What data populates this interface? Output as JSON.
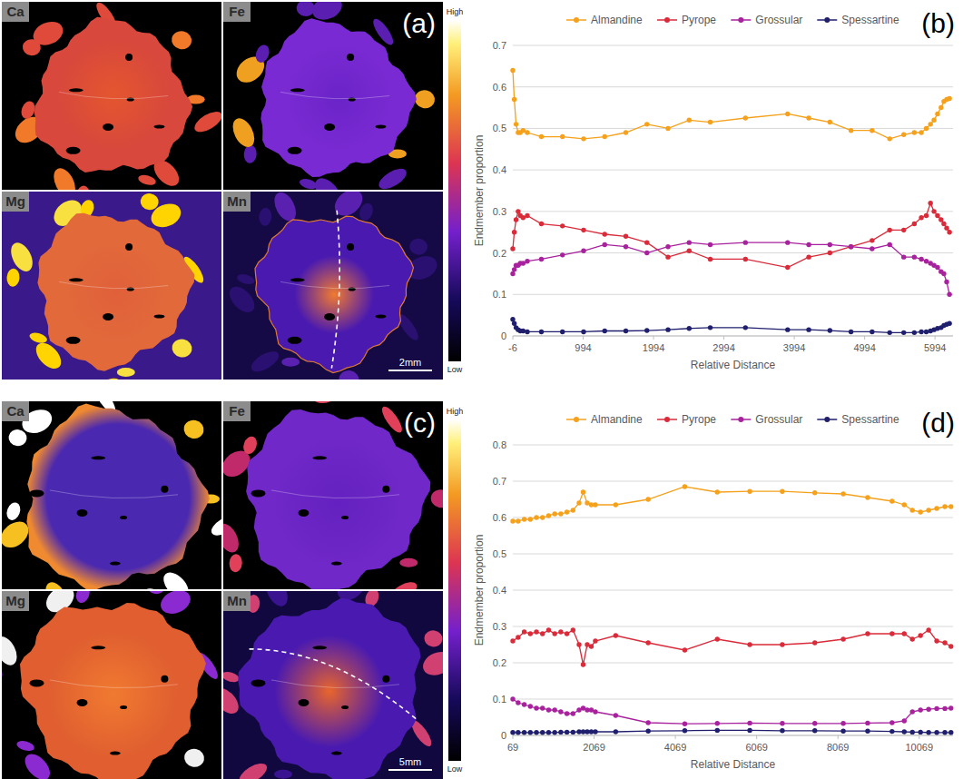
{
  "chart_data": [
    {
      "type": "line",
      "panel_label": "(b)",
      "x_label": "Relative Distance",
      "y_label": "Endmember proportion",
      "x": [
        -6,
        15,
        40,
        70,
        100,
        140,
        200,
        400,
        700,
        1000,
        1300,
        1600,
        1900,
        2200,
        2500,
        2800,
        3300,
        3900,
        4200,
        4500,
        4800,
        5100,
        5350,
        5550,
        5700,
        5800,
        5870,
        5930,
        5980,
        6030,
        6080,
        6120,
        6160,
        6200
      ],
      "xlim": [
        -6,
        6250
      ],
      "xticks": [
        -6,
        994,
        1994,
        2994,
        3994,
        4994,
        5994
      ],
      "ylim": [
        0,
        0.7
      ],
      "yticks": [
        0,
        0.1,
        0.2,
        0.3,
        0.4,
        0.5,
        0.6,
        0.7
      ],
      "grid": true,
      "legend": "top",
      "marker": "circle",
      "series": [
        {
          "name": "Almandine",
          "color": "#f5a11c",
          "values": [
            0.64,
            0.57,
            0.51,
            0.49,
            0.49,
            0.495,
            0.49,
            0.48,
            0.48,
            0.475,
            0.48,
            0.49,
            0.51,
            0.5,
            0.52,
            0.515,
            0.525,
            0.535,
            0.525,
            0.515,
            0.495,
            0.495,
            0.475,
            0.485,
            0.49,
            0.49,
            0.5,
            0.51,
            0.52,
            0.535,
            0.55,
            0.565,
            0.57,
            0.572
          ]
        },
        {
          "name": "Pyrope",
          "color": "#d92b3a",
          "values": [
            0.21,
            0.25,
            0.28,
            0.3,
            0.29,
            0.285,
            0.29,
            0.27,
            0.265,
            0.255,
            0.245,
            0.24,
            0.225,
            0.19,
            0.205,
            0.185,
            0.185,
            0.165,
            0.19,
            0.2,
            0.215,
            0.23,
            0.255,
            0.255,
            0.27,
            0.285,
            0.29,
            0.32,
            0.3,
            0.29,
            0.28,
            0.27,
            0.26,
            0.25
          ]
        },
        {
          "name": "Grossular",
          "color": "#a8229e",
          "values": [
            0.15,
            0.16,
            0.17,
            0.17,
            0.175,
            0.175,
            0.18,
            0.185,
            0.195,
            0.205,
            0.22,
            0.215,
            0.2,
            0.215,
            0.225,
            0.22,
            0.225,
            0.225,
            0.22,
            0.22,
            0.215,
            0.21,
            0.22,
            0.19,
            0.19,
            0.185,
            0.18,
            0.175,
            0.17,
            0.165,
            0.155,
            0.15,
            0.13,
            0.1
          ]
        },
        {
          "name": "Spessartine",
          "color": "#1f1f6e",
          "values": [
            0.04,
            0.03,
            0.02,
            0.015,
            0.012,
            0.012,
            0.01,
            0.01,
            0.01,
            0.01,
            0.012,
            0.012,
            0.013,
            0.015,
            0.018,
            0.02,
            0.02,
            0.015,
            0.015,
            0.013,
            0.01,
            0.01,
            0.008,
            0.008,
            0.008,
            0.01,
            0.01,
            0.012,
            0.015,
            0.018,
            0.02,
            0.025,
            0.028,
            0.03
          ]
        }
      ]
    },
    {
      "type": "line",
      "panel_label": "(d)",
      "x_label": "Relative Distance",
      "y_label": "Endmember proportion",
      "x": [
        69,
        200,
        350,
        500,
        650,
        800,
        950,
        1100,
        1250,
        1400,
        1550,
        1700,
        1800,
        1900,
        2000,
        2100,
        2600,
        3400,
        4300,
        5100,
        5900,
        6700,
        7500,
        8200,
        8800,
        9400,
        9700,
        9900,
        10100,
        10300,
        10500,
        10700,
        10850
      ],
      "xlim": [
        69,
        10900
      ],
      "xticks": [
        69,
        2069,
        4069,
        6069,
        8069,
        10069
      ],
      "ylim": [
        0,
        0.8
      ],
      "yticks": [
        0,
        0.1,
        0.2,
        0.3,
        0.4,
        0.5,
        0.6,
        0.7,
        0.8
      ],
      "grid": true,
      "legend": "top",
      "marker": "circle",
      "series": [
        {
          "name": "Almandine",
          "color": "#f5a11c",
          "values": [
            0.59,
            0.59,
            0.595,
            0.595,
            0.6,
            0.6,
            0.605,
            0.61,
            0.61,
            0.615,
            0.62,
            0.64,
            0.67,
            0.64,
            0.635,
            0.635,
            0.635,
            0.65,
            0.685,
            0.67,
            0.672,
            0.672,
            0.668,
            0.665,
            0.655,
            0.645,
            0.635,
            0.62,
            0.615,
            0.62,
            0.625,
            0.63,
            0.63
          ]
        },
        {
          "name": "Pyrope",
          "color": "#d92b3a",
          "values": [
            0.26,
            0.27,
            0.285,
            0.28,
            0.285,
            0.28,
            0.29,
            0.28,
            0.285,
            0.28,
            0.29,
            0.25,
            0.195,
            0.25,
            0.245,
            0.26,
            0.275,
            0.255,
            0.235,
            0.265,
            0.25,
            0.25,
            0.255,
            0.265,
            0.28,
            0.28,
            0.28,
            0.265,
            0.275,
            0.29,
            0.26,
            0.255,
            0.245
          ]
        },
        {
          "name": "Grossular",
          "color": "#a8229e",
          "values": [
            0.1,
            0.09,
            0.085,
            0.08,
            0.075,
            0.075,
            0.07,
            0.07,
            0.065,
            0.06,
            0.06,
            0.07,
            0.075,
            0.07,
            0.07,
            0.065,
            0.055,
            0.035,
            0.032,
            0.033,
            0.034,
            0.033,
            0.033,
            0.033,
            0.034,
            0.035,
            0.04,
            0.065,
            0.07,
            0.072,
            0.074,
            0.074,
            0.075
          ]
        },
        {
          "name": "Spessartine",
          "color": "#1f1f6e",
          "values": [
            0.008,
            0.008,
            0.008,
            0.008,
            0.008,
            0.008,
            0.008,
            0.008,
            0.009,
            0.009,
            0.009,
            0.01,
            0.01,
            0.01,
            0.01,
            0.01,
            0.01,
            0.012,
            0.013,
            0.014,
            0.014,
            0.013,
            0.013,
            0.012,
            0.012,
            0.011,
            0.01,
            0.009,
            0.009,
            0.008,
            0.008,
            0.008,
            0.008
          ]
        }
      ]
    }
  ],
  "maps": [
    {
      "panel_label": "(a)",
      "elements": [
        "Ca",
        "Fe",
        "Mg",
        "Mn"
      ],
      "scale_bar": "2mm",
      "colorbar_high": "High",
      "colorbar_low": "Low"
    },
    {
      "panel_label": "(c)",
      "elements": [
        "Ca",
        "Fe",
        "Mg",
        "Mn"
      ],
      "scale_bar": "5mm",
      "colorbar_high": "High",
      "colorbar_low": "Low"
    }
  ]
}
